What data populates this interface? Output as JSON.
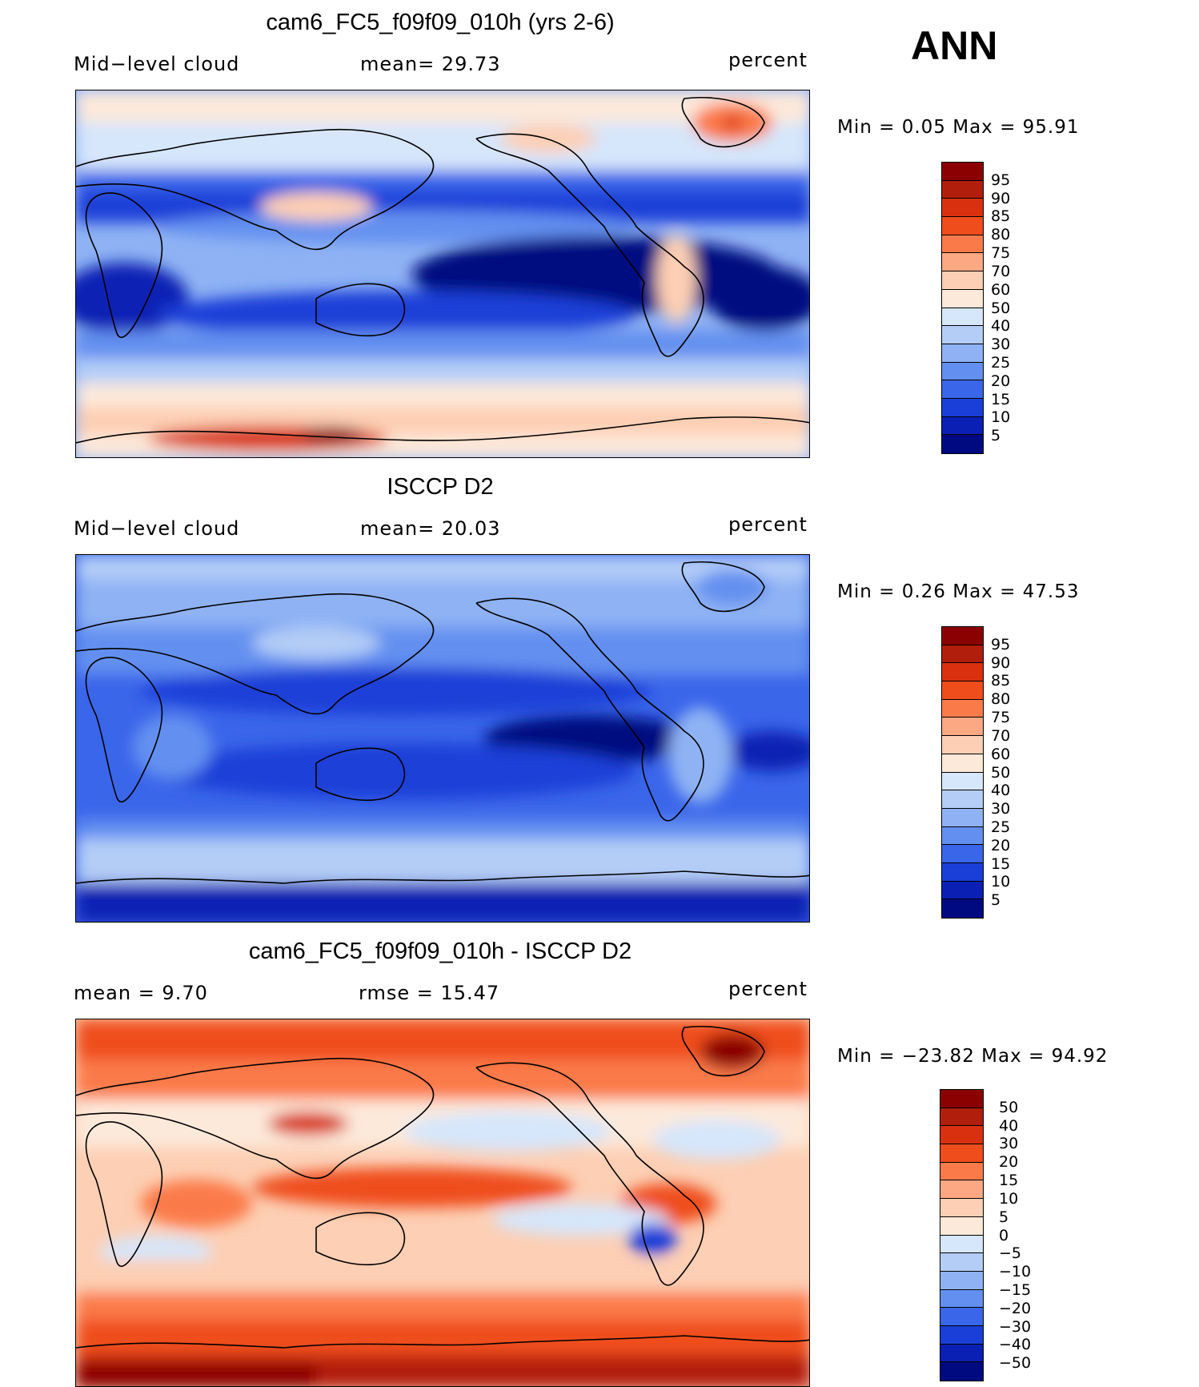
{
  "season": "ANN",
  "panels": [
    {
      "title": "cam6_FC5_f09f09_010h (yrs 2-6)",
      "left_label": "Mid−level cloud",
      "mid_label": "mean=   29.73",
      "right_label": "percent",
      "minmax": "Min  =     0.05  Max  =    95.91",
      "scale_type": "absolute",
      "scale_labels": [
        "95",
        "90",
        "85",
        "80",
        "75",
        "70",
        "60",
        "50",
        "40",
        "30",
        "25",
        "20",
        "15",
        "10",
        "5"
      ],
      "scale_colors": [
        "#8b0000",
        "#b21e0c",
        "#d9310f",
        "#ef4d1c",
        "#fb7a4a",
        "#fca883",
        "#fdcfb4",
        "#fde9da",
        "#d6e6fb",
        "#b4cdf7",
        "#8fb2f4",
        "#6390f0",
        "#3a66ea",
        "#1a3fd8",
        "#0a20b4",
        "#000a80"
      ]
    },
    {
      "title": "ISCCP D2",
      "left_label": "Mid−level cloud",
      "mid_label": "mean=   20.03",
      "right_label": "percent",
      "minmax": "Min  =     0.26  Max  =    47.53",
      "scale_type": "absolute",
      "scale_labels": [
        "95",
        "90",
        "85",
        "80",
        "75",
        "70",
        "60",
        "50",
        "40",
        "30",
        "25",
        "20",
        "15",
        "10",
        "5"
      ],
      "scale_colors": [
        "#8b0000",
        "#b21e0c",
        "#d9310f",
        "#ef4d1c",
        "#fb7a4a",
        "#fca883",
        "#fdcfb4",
        "#fde9da",
        "#d6e6fb",
        "#b4cdf7",
        "#8fb2f4",
        "#6390f0",
        "#3a66ea",
        "#1a3fd8",
        "#0a20b4",
        "#000a80"
      ]
    },
    {
      "title": "cam6_FC5_f09f09_010h - ISCCP D2",
      "left_label": "mean  =     9.70",
      "mid_label": "rmse  =    15.47",
      "right_label": "percent",
      "minmax": "Min  = −23.82  Max  =    94.92",
      "scale_type": "difference",
      "scale_labels": [
        "50",
        "40",
        "30",
        "20",
        "15",
        "10",
        "5",
        "0",
        "−5",
        "−10",
        "−15",
        "−20",
        "−30",
        "−40",
        "−50"
      ],
      "scale_colors": [
        "#8b0000",
        "#b21e0c",
        "#d9310f",
        "#ef4d1c",
        "#fb7a4a",
        "#fca883",
        "#fdcfb4",
        "#fde9da",
        "#d6e6fb",
        "#b4cdf7",
        "#8fb2f4",
        "#6390f0",
        "#3a66ea",
        "#1a3fd8",
        "#0a20b4",
        "#000a80"
      ]
    }
  ]
}
